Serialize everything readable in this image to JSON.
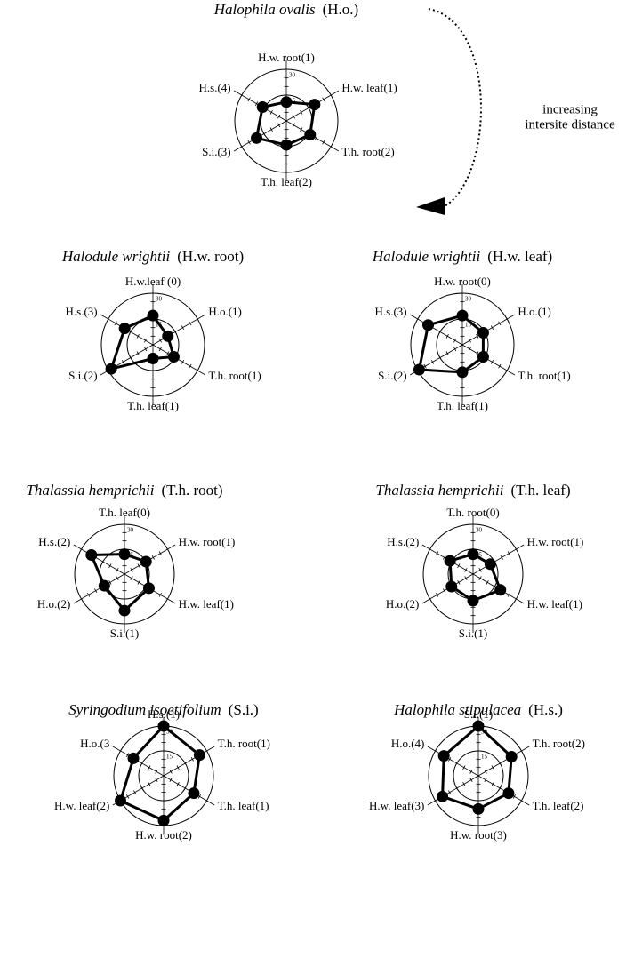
{
  "chart_data": [
    {
      "type": "radar",
      "title": "Halophila ovalis",
      "title_abbr": "(H.o.)",
      "axes": [
        "H.w. root(1)",
        "H.w. leaf(1)",
        "T.h. root(2)",
        "T.h. leaf(2)",
        "S.i.(3)",
        "H.s.(4)"
      ],
      "values": [
        11,
        19,
        16,
        14,
        20,
        16
      ],
      "rlim": [
        0,
        30
      ],
      "rticks": [
        15,
        30
      ],
      "color": "#000000",
      "annotation": [
        "increasing",
        "intersite distance"
      ]
    },
    {
      "type": "radar",
      "title": "Halodule wrightii",
      "title_abbr": "(H.w. root)",
      "axes": [
        "H.w.leaf (0)",
        "H.o.(1)",
        "T.h. root(1)",
        "T.h. leaf(1)",
        "S.i.(2)",
        "H.s.(3)"
      ],
      "values": [
        17,
        10,
        14,
        8,
        28,
        19
      ],
      "rlim": [
        0,
        30
      ],
      "rticks": [
        15,
        30
      ],
      "color": "#000000"
    },
    {
      "type": "radar",
      "title": "Halodule wrightii",
      "title_abbr": "(H.w. leaf)",
      "axes": [
        "H.w. root(0)",
        "H.o.(1)",
        "T.h. root(1)",
        "T.h. leaf(1)",
        "S.i.(2)",
        "H.s.(3)"
      ],
      "values": [
        17,
        14,
        14,
        16,
        29,
        23
      ],
      "rlim": [
        0,
        30
      ],
      "rticks": [
        15,
        30
      ],
      "color": "#000000"
    },
    {
      "type": "radar",
      "title": "Thalassia hemprichii",
      "title_abbr": "(T.h. root)",
      "axes": [
        "T.h. leaf(0)",
        "H.w. root(1)",
        "H.w. leaf(1)",
        "S.i.(1)",
        "H.o.(2)",
        "H.s.(2)"
      ],
      "values": [
        12,
        15,
        17,
        22,
        14,
        23
      ],
      "rlim": [
        0,
        30
      ],
      "rticks": [
        15,
        30
      ],
      "color": "#000000"
    },
    {
      "type": "radar",
      "title": "Thalassia hemprichii",
      "title_abbr": "(T.h. leaf)",
      "axes": [
        "T.h. root(0)",
        "H.w. root(1)",
        "H.w. leaf(1)",
        "S.i.(1)",
        "H.o.(2)",
        "H.s.(2)"
      ],
      "values": [
        12,
        12,
        19,
        16,
        15,
        16
      ],
      "rlim": [
        0,
        30
      ],
      "rticks": [
        15,
        30
      ],
      "color": "#000000"
    },
    {
      "type": "radar",
      "title": "Syringodium isoetifolium",
      "title_abbr": "(S.i.)",
      "axes": [
        "H.s.(1)",
        "T.h. root(1)",
        "T.h. leaf(1)",
        "H.w. root(2)",
        "H.w. leaf(2)",
        "H.o.(3"
      ],
      "values": [
        30,
        25,
        21,
        27,
        30,
        21
      ],
      "rlim": [
        0,
        30
      ],
      "rticks": [
        15,
        30
      ],
      "color": "#000000"
    },
    {
      "type": "radar",
      "title": "Halophila stipulacea",
      "title_abbr": "(H.s.)",
      "axes": [
        "S.i.(1)",
        "T.h. root(2)",
        "T.h. leaf(2)",
        "H.w. root(3)",
        "H.w. leaf(3)",
        "H.o.(4)"
      ],
      "values": [
        30,
        23,
        21,
        20,
        25,
        24
      ],
      "rlim": [
        0,
        30
      ],
      "rticks": [
        15,
        30
      ],
      "color": "#000000"
    }
  ]
}
